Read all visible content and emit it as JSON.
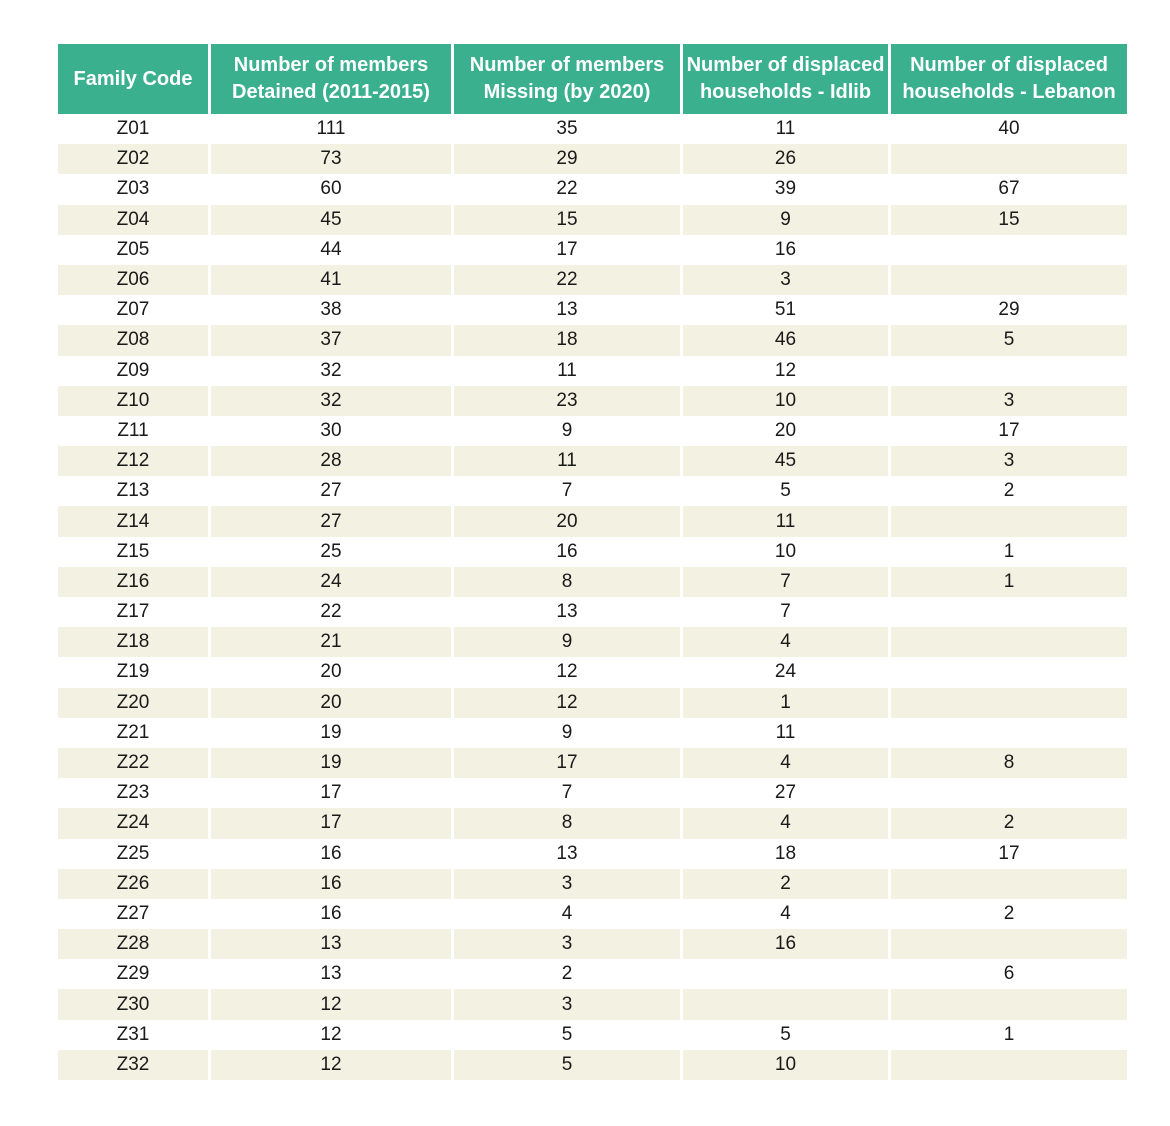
{
  "table": {
    "headers": [
      "Family Code",
      "Number of members Detained (2011-2015)",
      "Number of members Missing (by 2020)",
      "Number of displaced households - Idlib",
      "Number of displaced households - Lebanon"
    ],
    "header_lines": [
      [
        "Family Code"
      ],
      [
        "Number of members",
        "Detained (2011-2015)"
      ],
      [
        "Number of members",
        "Missing (by 2020)"
      ],
      [
        "Number of displaced",
        "households - Idlib"
      ],
      [
        "Number of displaced",
        "households - Lebanon"
      ]
    ],
    "rows": [
      [
        "Z01",
        "111",
        "35",
        "11",
        "40"
      ],
      [
        "Z02",
        "73",
        "29",
        "26",
        ""
      ],
      [
        "Z03",
        "60",
        "22",
        "39",
        "67"
      ],
      [
        "Z04",
        "45",
        "15",
        "9",
        "15"
      ],
      [
        "Z05",
        "44",
        "17",
        "16",
        ""
      ],
      [
        "Z06",
        "41",
        "22",
        "3",
        ""
      ],
      [
        "Z07",
        "38",
        "13",
        "51",
        "29"
      ],
      [
        "Z08",
        "37",
        "18",
        "46",
        "5"
      ],
      [
        "Z09",
        "32",
        "11",
        "12",
        ""
      ],
      [
        "Z10",
        "32",
        "23",
        "10",
        "3"
      ],
      [
        "Z11",
        "30",
        "9",
        "20",
        "17"
      ],
      [
        "Z12",
        "28",
        "11",
        "45",
        "3"
      ],
      [
        "Z13",
        "27",
        "7",
        "5",
        "2"
      ],
      [
        "Z14",
        "27",
        "20",
        "11",
        ""
      ],
      [
        "Z15",
        "25",
        "16",
        "10",
        "1"
      ],
      [
        "Z16",
        "24",
        "8",
        "7",
        "1"
      ],
      [
        "Z17",
        "22",
        "13",
        "7",
        ""
      ],
      [
        "Z18",
        "21",
        "9",
        "4",
        ""
      ],
      [
        "Z19",
        "20",
        "12",
        "24",
        ""
      ],
      [
        "Z20",
        "20",
        "12",
        "1",
        ""
      ],
      [
        "Z21",
        "19",
        "9",
        "11",
        ""
      ],
      [
        "Z22",
        "19",
        "17",
        "4",
        "8"
      ],
      [
        "Z23",
        "17",
        "7",
        "27",
        ""
      ],
      [
        "Z24",
        "17",
        "8",
        "4",
        "2"
      ],
      [
        "Z25",
        "16",
        "13",
        "18",
        "17"
      ],
      [
        "Z26",
        "16",
        "3",
        "2",
        ""
      ],
      [
        "Z27",
        "16",
        "4",
        "4",
        "2"
      ],
      [
        "Z28",
        "13",
        "3",
        "16",
        ""
      ],
      [
        "Z29",
        "13",
        "2",
        "",
        "6"
      ],
      [
        "Z30",
        "12",
        "3",
        "",
        ""
      ],
      [
        "Z31",
        "12",
        "5",
        "5",
        "1"
      ],
      [
        "Z32",
        "12",
        "5",
        "10",
        ""
      ]
    ]
  },
  "colors": {
    "header_bg": "#3bb08f",
    "header_text": "#ffffff",
    "stripe_row_bg": "#f3f1e2",
    "plain_row_bg": "#ffffff"
  }
}
